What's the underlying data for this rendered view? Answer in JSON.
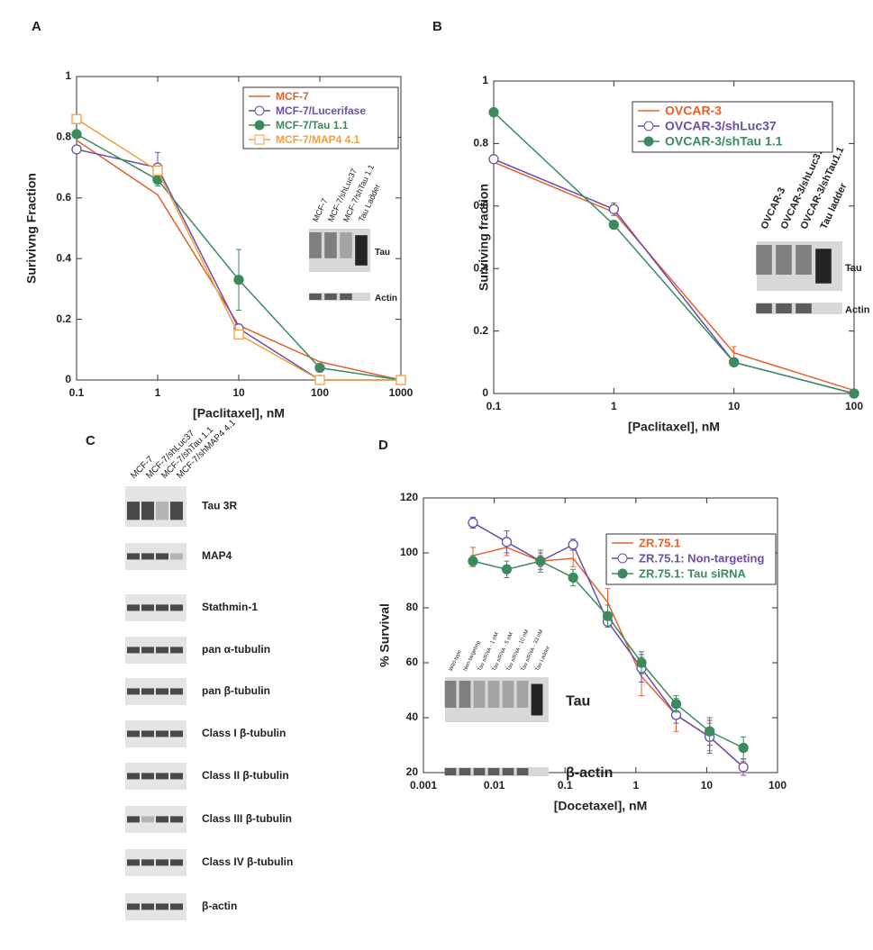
{
  "chart_data": [
    {
      "type": "line",
      "panel": "A",
      "xlabel": "[Paclitaxel], nM",
      "ylabel": "Surivivng Fraction",
      "xscale": "log",
      "xlim": [
        0.1,
        1000
      ],
      "xticks": [
        0.1,
        1,
        10,
        100,
        1000
      ],
      "ylim": [
        0,
        1
      ],
      "yticks": [
        0,
        0.2,
        0.4,
        0.6,
        0.8,
        1
      ],
      "legend": "upper right",
      "x": [
        0.1,
        1,
        10,
        100,
        1000
      ],
      "series": [
        {
          "name": "MCF-7",
          "color": "#e0622a",
          "marker": "none",
          "values": [
            0.79,
            0.61,
            0.18,
            0.06,
            0
          ],
          "errors": [
            null,
            null,
            null,
            null,
            null
          ]
        },
        {
          "name": "MCF-7/Lucerifase",
          "color": "#6a4fa8",
          "marker": "circle-open",
          "values": [
            0.76,
            0.7,
            0.17,
            0,
            0
          ],
          "errors": [
            null,
            0.05,
            null,
            null,
            null
          ]
        },
        {
          "name": "MCF-7/Tau 1.1",
          "color": "#3d8a5f",
          "marker": "circle",
          "values": [
            0.81,
            0.66,
            0.33,
            0.04,
            0
          ],
          "errors": [
            null,
            0.02,
            0.1,
            null,
            null
          ]
        },
        {
          "name": "MCF-7/MAP4 4.1",
          "color": "#f0a040",
          "marker": "square-open",
          "values": [
            0.86,
            0.69,
            0.15,
            0,
            0
          ],
          "errors": [
            null,
            null,
            null,
            null,
            null
          ]
        }
      ],
      "inset": {
        "lanes": [
          "MCF-7",
          "MCF-7/shLuc37",
          "MCF-7/shTau 1.1",
          "Tau Ladder"
        ],
        "bands": [
          "Tau",
          "Actin"
        ]
      }
    },
    {
      "type": "line",
      "panel": "B",
      "xlabel": "[Paclitaxel], nM",
      "ylabel": "Surviving fraction",
      "xscale": "log",
      "xlim": [
        0.1,
        100
      ],
      "xticks": [
        0.1,
        1,
        10,
        100
      ],
      "ylim": [
        0,
        1
      ],
      "yticks": [
        0,
        0.2,
        0.4,
        0.6,
        0.8,
        1
      ],
      "legend": "upper right",
      "x": [
        0.1,
        1,
        10,
        100
      ],
      "series": [
        {
          "name": "OVCAR-3",
          "color": "#e8602a",
          "marker": "none",
          "values": [
            0.74,
            0.58,
            0.13,
            0.01
          ],
          "errors": [
            null,
            null,
            0.02,
            null
          ]
        },
        {
          "name": "OVCAR-3/shLuc37",
          "color": "#6a4fa8",
          "marker": "circle-open",
          "values": [
            0.75,
            0.59,
            0.1,
            0
          ],
          "errors": [
            null,
            0.02,
            null,
            null
          ]
        },
        {
          "name": "OVCAR-3/shTau 1.1",
          "color": "#3d8a5f",
          "marker": "circle",
          "values": [
            0.9,
            0.54,
            0.1,
            0
          ],
          "errors": [
            null,
            null,
            null,
            null
          ]
        }
      ],
      "inset": {
        "lanes": [
          "OVCAR-3",
          "OVCAR-3/shLuc37",
          "OVCAR-3/shTau1.1",
          "Tau ladder"
        ],
        "bands": [
          "Tau",
          "Actin"
        ]
      }
    },
    {
      "type": "line",
      "panel": "D",
      "xlabel": "[Docetaxel], nM",
      "ylabel": "% Survival",
      "xscale": "log",
      "xlim": [
        0.001,
        100
      ],
      "xticks": [
        0.001,
        0.01,
        0.1,
        1,
        10,
        100
      ],
      "ylim": [
        20,
        120
      ],
      "yticks": [
        20,
        40,
        60,
        80,
        100,
        120
      ],
      "legend": "upper right",
      "x": [
        0.005,
        0.015,
        0.045,
        0.13,
        0.4,
        1.2,
        3.7,
        11,
        33
      ],
      "series": [
        {
          "name": "ZR.75.1",
          "color": "#e8602a",
          "marker": "none",
          "values": [
            99,
            102,
            97,
            98,
            82,
            55,
            41,
            33,
            22
          ],
          "errors": [
            3,
            3,
            2,
            3,
            5,
            7,
            6,
            5,
            2
          ]
        },
        {
          "name": "ZR.75.1: Non-targeting",
          "color": "#6a4fa8",
          "marker": "circle-open",
          "values": [
            111,
            104,
            97,
            103,
            75,
            58,
            41,
            33,
            22
          ],
          "errors": [
            2,
            4,
            3,
            2,
            2,
            5,
            3,
            6,
            3
          ]
        },
        {
          "name": "ZR.75.1: Tau siRNA",
          "color": "#3d8a5f",
          "marker": "circle",
          "values": [
            97,
            94,
            97,
            91,
            77,
            60,
            45,
            35,
            29
          ],
          "errors": [
            2,
            3,
            4,
            3,
            4,
            4,
            3,
            5,
            4
          ]
        }
      ],
      "inset": {
        "lanes": [
          "Wild-type",
          "Non-targeting",
          "Tau siRNA - 1 nM",
          "Tau siRNA - 5 nM",
          "Tau siRNA - 10 nM",
          "Tau siRNA - 33 nM",
          "Tau Ladder"
        ],
        "bands": [
          "Tau",
          "β-actin"
        ]
      }
    }
  ],
  "panel_c": {
    "label": "C",
    "lanes": [
      "MCF-7",
      "MCF-7/shLuc37",
      "MCF-7/shTau 1.1",
      "MCF-7/shMAP4 4.1"
    ],
    "rows": [
      "Tau 3R",
      "MAP4",
      "Stathmin-1",
      "pan α-tubulin",
      "pan β-tubulin",
      "Class I β-tubulin",
      "Class II β-tubulin",
      "Class III β-tubulin",
      "Class IV β-tubulin",
      "β-actin"
    ]
  }
}
